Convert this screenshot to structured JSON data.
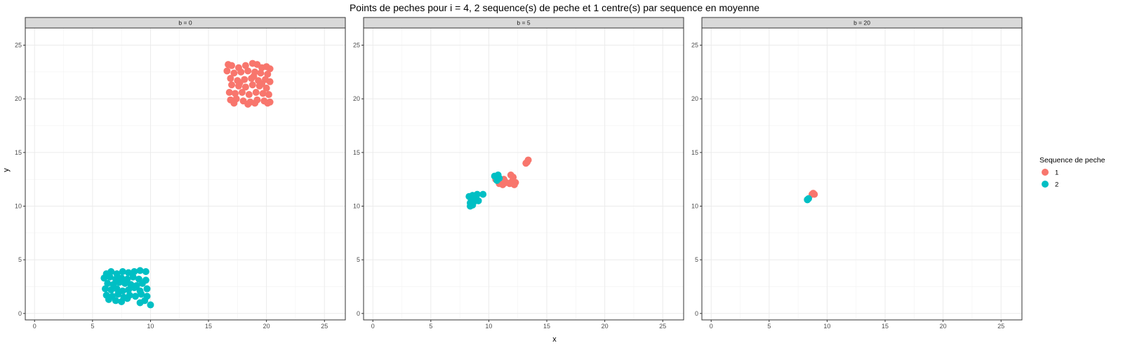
{
  "chart_data": {
    "type": "scatter",
    "title": "Points de peches pour i = 4, 2 sequence(s) de peche et 1 centre(s) par sequence en moyenne",
    "xlabel": "x",
    "ylabel": "y",
    "xlim": [
      -0.8,
      26.8
    ],
    "ylim": [
      -0.6,
      26.6
    ],
    "xticks": [
      0,
      5,
      10,
      15,
      20,
      25
    ],
    "yticks": [
      0,
      5,
      10,
      15,
      20,
      25
    ],
    "grid": true,
    "legend": {
      "title": "Sequence de peche",
      "position": "right",
      "entries": [
        {
          "label": "1",
          "color": "#F8766D"
        },
        {
          "label": "2",
          "color": "#00BFC4"
        }
      ]
    },
    "panels": [
      {
        "strip": "b = 0",
        "series": [
          {
            "name": "1",
            "color": "#F8766D",
            "points": [
              [
                16.7,
                23.2
              ],
              [
                17.0,
                23.1
              ],
              [
                17.6,
                22.9
              ],
              [
                18.2,
                23.1
              ],
              [
                18.8,
                23.3
              ],
              [
                19.2,
                23.2
              ],
              [
                19.6,
                22.9
              ],
              [
                20.0,
                23.0
              ],
              [
                20.3,
                22.8
              ],
              [
                16.6,
                22.6
              ],
              [
                17.2,
                22.4
              ],
              [
                17.8,
                22.5
              ],
              [
                18.4,
                22.6
              ],
              [
                19.0,
                22.5
              ],
              [
                19.5,
                22.4
              ],
              [
                20.1,
                22.3
              ],
              [
                16.9,
                21.9
              ],
              [
                17.5,
                21.7
              ],
              [
                18.1,
                21.8
              ],
              [
                18.7,
                21.9
              ],
              [
                19.3,
                21.7
              ],
              [
                19.9,
                21.8
              ],
              [
                20.3,
                21.6
              ],
              [
                17.0,
                21.3
              ],
              [
                17.6,
                21.2
              ],
              [
                18.2,
                21.1
              ],
              [
                18.8,
                21.3
              ],
              [
                19.4,
                21.2
              ],
              [
                20.0,
                21.0
              ],
              [
                16.8,
                20.6
              ],
              [
                17.3,
                20.5
              ],
              [
                17.9,
                20.6
              ],
              [
                18.5,
                20.4
              ],
              [
                19.1,
                20.6
              ],
              [
                19.7,
                20.5
              ],
              [
                20.2,
                20.4
              ],
              [
                16.9,
                19.9
              ],
              [
                17.4,
                20.0
              ],
              [
                18.0,
                19.8
              ],
              [
                18.6,
                19.7
              ],
              [
                19.2,
                19.9
              ],
              [
                19.8,
                19.8
              ],
              [
                20.3,
                19.7
              ],
              [
                17.2,
                19.6
              ],
              [
                18.4,
                19.5
              ],
              [
                19.0,
                19.6
              ],
              [
                20.1,
                19.6
              ],
              [
                17.7,
                21.5
              ],
              [
                18.9,
                22.1
              ],
              [
                19.6,
                21.4
              ]
            ]
          },
          {
            "name": "2",
            "color": "#00BFC4",
            "points": [
              [
                6.2,
                3.7
              ],
              [
                6.6,
                3.9
              ],
              [
                7.1,
                3.7
              ],
              [
                7.6,
                3.9
              ],
              [
                8.1,
                3.8
              ],
              [
                8.6,
                3.9
              ],
              [
                9.1,
                4.0
              ],
              [
                9.6,
                3.9
              ],
              [
                6.0,
                3.3
              ],
              [
                6.5,
                3.4
              ],
              [
                7.0,
                3.2
              ],
              [
                7.5,
                3.3
              ],
              [
                8.0,
                3.2
              ],
              [
                8.5,
                3.4
              ],
              [
                9.0,
                3.2
              ],
              [
                9.6,
                3.1
              ],
              [
                6.3,
                2.8
              ],
              [
                6.8,
                2.7
              ],
              [
                7.3,
                2.9
              ],
              [
                7.8,
                2.8
              ],
              [
                8.3,
                2.7
              ],
              [
                8.8,
                2.6
              ],
              [
                9.3,
                2.8
              ],
              [
                6.1,
                2.3
              ],
              [
                6.6,
                2.2
              ],
              [
                7.1,
                2.3
              ],
              [
                7.6,
                2.1
              ],
              [
                8.1,
                2.2
              ],
              [
                8.6,
                2.4
              ],
              [
                9.1,
                2.1
              ],
              [
                9.7,
                2.3
              ],
              [
                6.2,
                1.7
              ],
              [
                6.7,
                1.6
              ],
              [
                7.2,
                1.8
              ],
              [
                7.7,
                1.5
              ],
              [
                8.2,
                1.7
              ],
              [
                8.7,
                1.6
              ],
              [
                9.2,
                1.8
              ],
              [
                9.7,
                1.6
              ],
              [
                6.4,
                1.3
              ],
              [
                7.0,
                1.2
              ],
              [
                7.5,
                1.1
              ],
              [
                8.0,
                1.4
              ],
              [
                9.1,
                1.0
              ],
              [
                9.5,
                1.2
              ],
              [
                10.0,
                0.8
              ]
            ]
          }
        ]
      },
      {
        "strip": "b = 5",
        "series": [
          {
            "name": "1",
            "color": "#F8766D",
            "points": [
              [
                10.6,
                12.5
              ],
              [
                10.9,
                12.1
              ],
              [
                11.2,
                12.0
              ],
              [
                11.5,
                12.2
              ],
              [
                11.3,
                12.5
              ],
              [
                11.8,
                12.1
              ],
              [
                12.0,
                12.3
              ],
              [
                11.9,
                12.9
              ],
              [
                12.2,
                12.0
              ],
              [
                12.3,
                12.2
              ],
              [
                12.1,
                12.7
              ],
              [
                13.3,
                14.1
              ],
              [
                13.4,
                14.3
              ],
              [
                13.2,
                14.0
              ]
            ]
          },
          {
            "name": "2",
            "color": "#00BFC4",
            "points": [
              [
                8.4,
                10.3
              ],
              [
                8.5,
                10.6
              ],
              [
                8.3,
                10.9
              ],
              [
                8.6,
                11.0
              ],
              [
                8.7,
                10.4
              ],
              [
                8.9,
                10.7
              ],
              [
                9.1,
                10.5
              ],
              [
                9.0,
                11.1
              ],
              [
                8.6,
                10.1
              ],
              [
                8.4,
                10.0
              ],
              [
                9.5,
                11.1
              ],
              [
                10.5,
                12.8
              ],
              [
                10.8,
                12.9
              ],
              [
                10.7,
                12.4
              ],
              [
                10.9,
                12.6
              ]
            ]
          }
        ]
      },
      {
        "strip": "b = 20",
        "series": [
          {
            "name": "1",
            "color": "#F8766D",
            "points": [
              [
                8.8,
                11.2
              ],
              [
                8.9,
                11.1
              ],
              [
                8.7,
                11.1
              ]
            ]
          },
          {
            "name": "2",
            "color": "#00BFC4",
            "points": [
              [
                8.3,
                10.6
              ],
              [
                8.4,
                10.7
              ],
              [
                8.3,
                10.6
              ]
            ]
          }
        ]
      }
    ]
  }
}
